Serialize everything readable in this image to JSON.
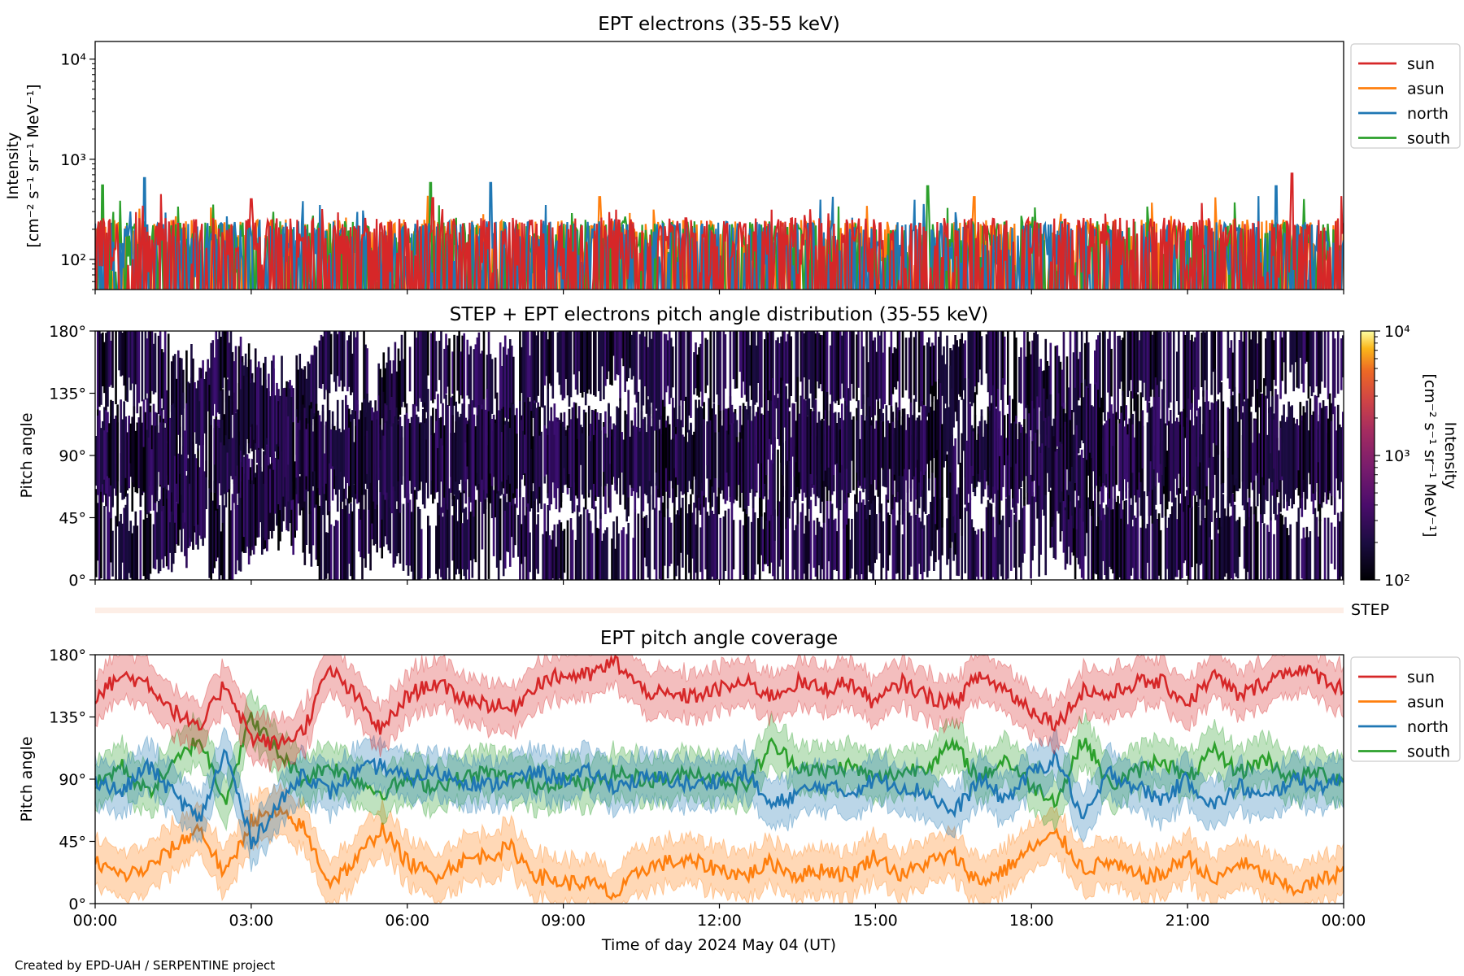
{
  "chart_data": [
    {
      "type": "line",
      "title": "EPT electrons (35-55 keV)",
      "ylabel_lines": [
        "Intensity",
        "[cm⁻² s⁻¹ sr⁻¹ MeV⁻¹]"
      ],
      "yscale": "log",
      "ylim": [
        50,
        15000
      ],
      "yticks": [
        {
          "value": 100,
          "label": "10²"
        },
        {
          "value": 1000,
          "label": "10³"
        },
        {
          "value": 10000,
          "label": "10⁴"
        }
      ],
      "xlim_hours": [
        0,
        24
      ],
      "legend_position": "upper right, outside",
      "series": [
        {
          "name": "sun",
          "color": "#d62728",
          "typical": [
            60,
            260
          ],
          "spikes": [
            [
              23.0,
              720
            ],
            [
              3.0,
              400
            ],
            [
              6.5,
              410
            ]
          ]
        },
        {
          "name": "asun",
          "color": "#ff7f0e",
          "typical": [
            55,
            250
          ],
          "spikes": [
            [
              9.7,
              420
            ],
            [
              16.9,
              420
            ]
          ]
        },
        {
          "name": "north",
          "color": "#1f77b4",
          "typical": [
            55,
            240
          ],
          "spikes": [
            [
              0.95,
              650
            ],
            [
              7.6,
              580
            ],
            [
              22.7,
              540
            ]
          ]
        },
        {
          "name": "south",
          "color": "#2ca02c",
          "typical": [
            55,
            240
          ],
          "spikes": [
            [
              0.15,
              550
            ],
            [
              6.45,
              580
            ],
            [
              16.0,
              540
            ]
          ]
        }
      ]
    },
    {
      "type": "heatmap",
      "title": "STEP + EPT electrons pitch angle distribution (35-55 keV)",
      "ylabel": "Pitch angle",
      "ylim_deg": [
        0,
        180
      ],
      "yticks": [
        {
          "value": 0,
          "label": "0°"
        },
        {
          "value": 45,
          "label": "45°"
        },
        {
          "value": 90,
          "label": "90°"
        },
        {
          "value": 135,
          "label": "135°"
        },
        {
          "value": 180,
          "label": "180°"
        }
      ],
      "xlim_hours": [
        0,
        24
      ],
      "colorbar": {
        "scale": "log",
        "range": [
          100,
          10000
        ],
        "label_lines": [
          "Intensity",
          "[cm⁻² s⁻¹ sr⁻¹ MeV⁻¹]"
        ],
        "ticks": [
          {
            "value": 100,
            "label": "10²"
          },
          {
            "value": 1000,
            "label": "10³"
          },
          {
            "value": 10000,
            "label": "10⁴"
          }
        ],
        "colormap": "inferno"
      },
      "notes": "intensity ~100-200, mostly at the low end of the color scale; white gaps where no data"
    },
    {
      "type": "bar",
      "label": "STEP",
      "coverage": "thin faint band spanning the full day"
    },
    {
      "type": "line",
      "title": "EPT pitch angle coverage",
      "ylabel": "Pitch angle",
      "ylim_deg": [
        0,
        180
      ],
      "yticks": [
        {
          "value": 0,
          "label": "0°"
        },
        {
          "value": 45,
          "label": "45°"
        },
        {
          "value": 90,
          "label": "90°"
        },
        {
          "value": 135,
          "label": "135°"
        },
        {
          "value": 180,
          "label": "180°"
        }
      ],
      "xlim_hours": [
        0,
        24
      ],
      "xticks": [
        {
          "value": 0,
          "label": "00:00"
        },
        {
          "value": 3,
          "label": "03:00"
        },
        {
          "value": 6,
          "label": "06:00"
        },
        {
          "value": 9,
          "label": "09:00"
        },
        {
          "value": 12,
          "label": "12:00"
        },
        {
          "value": 15,
          "label": "15:00"
        },
        {
          "value": 18,
          "label": "18:00"
        },
        {
          "value": 21,
          "label": "21:00"
        },
        {
          "value": 24,
          "label": "00:00"
        }
      ],
      "xlabel": "Time of day 2024 May 04 (UT)",
      "legend_position": "upper right, outside",
      "band_halfwidth_deg": 17,
      "series": [
        {
          "name": "sun",
          "color": "#d62728",
          "points": [
            [
              0,
              150
            ],
            [
              0.5,
              165
            ],
            [
              1,
              160
            ],
            [
              1.5,
              140
            ],
            [
              2,
              125
            ],
            [
              2.5,
              160
            ],
            [
              3,
              120
            ],
            [
              3.5,
              115
            ],
            [
              4,
              125
            ],
            [
              4.5,
              170
            ],
            [
              5,
              150
            ],
            [
              5.5,
              125
            ],
            [
              6,
              150
            ],
            [
              6.5,
              160
            ],
            [
              7,
              150
            ],
            [
              7.5,
              145
            ],
            [
              8,
              140
            ],
            [
              8.5,
              160
            ],
            [
              9,
              165
            ],
            [
              9.5,
              165
            ],
            [
              10,
              175
            ],
            [
              10.5,
              155
            ],
            [
              11,
              150
            ],
            [
              11.5,
              150
            ],
            [
              12,
              155
            ],
            [
              12.5,
              160
            ],
            [
              13,
              150
            ],
            [
              13.5,
              160
            ],
            [
              14,
              155
            ],
            [
              14.5,
              160
            ],
            [
              15,
              145
            ],
            [
              15.5,
              160
            ],
            [
              16,
              150
            ],
            [
              16.5,
              145
            ],
            [
              17,
              165
            ],
            [
              17.5,
              155
            ],
            [
              18,
              140
            ],
            [
              18.5,
              130
            ],
            [
              19,
              155
            ],
            [
              19.5,
              150
            ],
            [
              20,
              160
            ],
            [
              20.5,
              160
            ],
            [
              21,
              145
            ],
            [
              21.5,
              165
            ],
            [
              22,
              150
            ],
            [
              22.5,
              160
            ],
            [
              23,
              170
            ],
            [
              23.5,
              165
            ],
            [
              24,
              155
            ]
          ]
        },
        {
          "name": "asun",
          "color": "#ff7f0e",
          "points": [
            [
              0,
              30
            ],
            [
              0.5,
              20
            ],
            [
              1,
              25
            ],
            [
              1.5,
              40
            ],
            [
              2,
              55
            ],
            [
              2.5,
              20
            ],
            [
              3,
              60
            ],
            [
              3.5,
              65
            ],
            [
              4,
              55
            ],
            [
              4.5,
              15
            ],
            [
              5,
              30
            ],
            [
              5.5,
              55
            ],
            [
              6,
              30
            ],
            [
              6.5,
              20
            ],
            [
              7,
              30
            ],
            [
              7.5,
              35
            ],
            [
              8,
              40
            ],
            [
              8.5,
              20
            ],
            [
              9,
              15
            ],
            [
              9.5,
              15
            ],
            [
              10,
              5
            ],
            [
              10.5,
              25
            ],
            [
              11,
              30
            ],
            [
              11.5,
              30
            ],
            [
              12,
              25
            ],
            [
              12.5,
              20
            ],
            [
              13,
              30
            ],
            [
              13.5,
              20
            ],
            [
              14,
              25
            ],
            [
              14.5,
              20
            ],
            [
              15,
              35
            ],
            [
              15.5,
              20
            ],
            [
              16,
              30
            ],
            [
              16.5,
              35
            ],
            [
              17,
              15
            ],
            [
              17.5,
              25
            ],
            [
              18,
              40
            ],
            [
              18.5,
              50
            ],
            [
              19,
              25
            ],
            [
              19.5,
              30
            ],
            [
              20,
              20
            ],
            [
              20.5,
              20
            ],
            [
              21,
              35
            ],
            [
              21.5,
              15
            ],
            [
              22,
              30
            ],
            [
              22.5,
              20
            ],
            [
              23,
              10
            ],
            [
              23.5,
              15
            ],
            [
              24,
              25
            ]
          ]
        },
        {
          "name": "north",
          "color": "#1f77b4",
          "points": [
            [
              0,
              90
            ],
            [
              0.5,
              80
            ],
            [
              1,
              100
            ],
            [
              1.5,
              80
            ],
            [
              2,
              60
            ],
            [
              2.5,
              110
            ],
            [
              3,
              45
            ],
            [
              3.5,
              70
            ],
            [
              4,
              95
            ],
            [
              4.5,
              80
            ],
            [
              5,
              95
            ],
            [
              5.5,
              100
            ],
            [
              6,
              90
            ],
            [
              6.5,
              95
            ],
            [
              7,
              90
            ],
            [
              7.5,
              85
            ],
            [
              8,
              90
            ],
            [
              8.5,
              95
            ],
            [
              9,
              90
            ],
            [
              9.5,
              95
            ],
            [
              10,
              85
            ],
            [
              10.5,
              90
            ],
            [
              11,
              90
            ],
            [
              11.5,
              85
            ],
            [
              12,
              90
            ],
            [
              12.5,
              95
            ],
            [
              13,
              70
            ],
            [
              13.5,
              80
            ],
            [
              14,
              85
            ],
            [
              14.5,
              80
            ],
            [
              15,
              90
            ],
            [
              15.5,
              85
            ],
            [
              16,
              80
            ],
            [
              16.5,
              65
            ],
            [
              17,
              90
            ],
            [
              17.5,
              75
            ],
            [
              18,
              95
            ],
            [
              18.5,
              105
            ],
            [
              19,
              60
            ],
            [
              19.5,
              95
            ],
            [
              20,
              85
            ],
            [
              20.5,
              75
            ],
            [
              21,
              90
            ],
            [
              21.5,
              70
            ],
            [
              22,
              85
            ],
            [
              22.5,
              75
            ],
            [
              23,
              90
            ],
            [
              23.5,
              85
            ],
            [
              24,
              90
            ]
          ]
        },
        {
          "name": "south",
          "color": "#2ca02c",
          "points": [
            [
              0,
              85
            ],
            [
              0.5,
              100
            ],
            [
              1,
              80
            ],
            [
              1.5,
              100
            ],
            [
              2,
              120
            ],
            [
              2.5,
              75
            ],
            [
              3,
              135
            ],
            [
              3.5,
              110
            ],
            [
              4,
              90
            ],
            [
              4.5,
              100
            ],
            [
              5,
              90
            ],
            [
              5.5,
              80
            ],
            [
              6,
              90
            ],
            [
              6.5,
              85
            ],
            [
              7,
              90
            ],
            [
              7.5,
              95
            ],
            [
              8,
              90
            ],
            [
              8.5,
              85
            ],
            [
              9,
              90
            ],
            [
              9.5,
              85
            ],
            [
              10,
              95
            ],
            [
              10.5,
              90
            ],
            [
              11,
              90
            ],
            [
              11.5,
              95
            ],
            [
              12,
              90
            ],
            [
              12.5,
              85
            ],
            [
              13,
              115
            ],
            [
              13.5,
              100
            ],
            [
              14,
              95
            ],
            [
              14.5,
              100
            ],
            [
              15,
              90
            ],
            [
              15.5,
              95
            ],
            [
              16,
              100
            ],
            [
              16.5,
              115
            ],
            [
              17,
              90
            ],
            [
              17.5,
              105
            ],
            [
              18,
              85
            ],
            [
              18.5,
              75
            ],
            [
              19,
              120
            ],
            [
              19.5,
              85
            ],
            [
              20,
              95
            ],
            [
              20.5,
              105
            ],
            [
              21,
              90
            ],
            [
              21.5,
              110
            ],
            [
              22,
              95
            ],
            [
              22.5,
              105
            ],
            [
              23,
              90
            ],
            [
              23.5,
              95
            ],
            [
              24,
              90
            ]
          ]
        }
      ]
    }
  ],
  "footer": {
    "credit": "Created by EPD-UAH / SERPENTINE project"
  },
  "step_label": "STEP"
}
